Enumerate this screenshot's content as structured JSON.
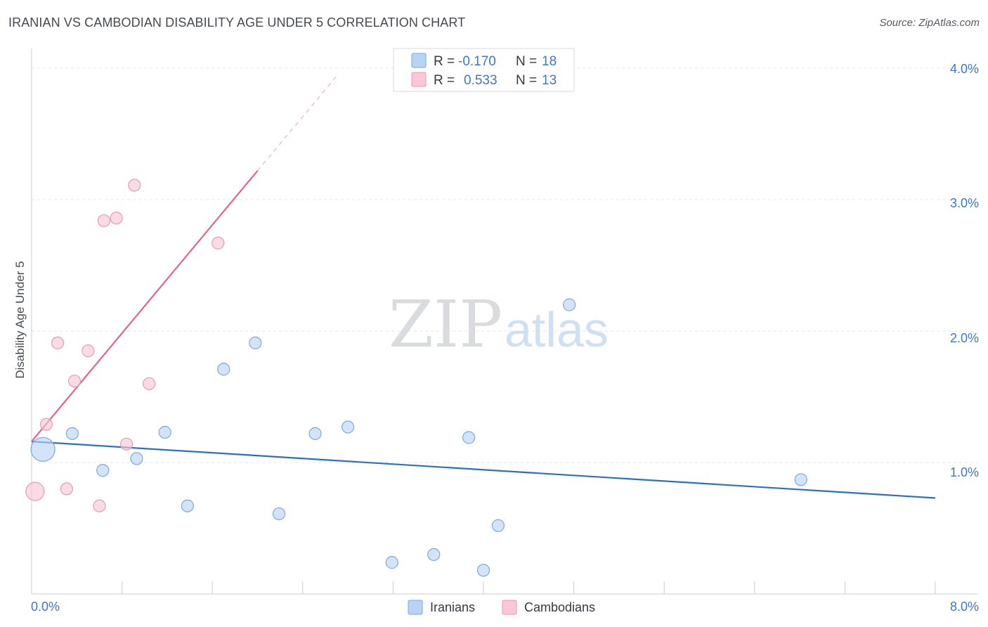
{
  "title": "IRANIAN VS CAMBODIAN DISABILITY AGE UNDER 5 CORRELATION CHART",
  "source": "Source: ZipAtlas.com",
  "watermark": {
    "zip": "ZIP",
    "atlas": "atlas"
  },
  "legend": {
    "rows": [
      {
        "r_label": "R =",
        "r_value": "-0.170",
        "n_label": "N =",
        "n_value": "18",
        "color": "#b8d4f4",
        "stroke": "#7aa9e0"
      },
      {
        "r_label": "R =",
        "r_value": "0.533",
        "n_label": "N =",
        "n_value": "13",
        "color": "#f9c7d5",
        "stroke": "#ee98b0"
      }
    ]
  },
  "bottom_legend": [
    {
      "label": "Iranians",
      "color": "#b8d4f4",
      "stroke": "#7aa9e0"
    },
    {
      "label": "Cambodians",
      "color": "#f9c7d5",
      "stroke": "#ee98b0"
    }
  ],
  "chart_data": {
    "type": "scatter",
    "title": "IRANIAN VS CAMBODIAN DISABILITY AGE UNDER 5 CORRELATION CHART",
    "xlabel": "",
    "ylabel": "Disability Age Under 5",
    "xlim": [
      0,
      8
    ],
    "ylim": [
      0,
      4.15
    ],
    "x_tick_labels": [
      "0.0%",
      "8.0%"
    ],
    "y_ticks": [
      1,
      2,
      3,
      4
    ],
    "y_tick_labels": [
      "1.0%",
      "2.0%",
      "3.0%",
      "4.0%"
    ],
    "grid": true,
    "series": [
      {
        "name": "Iranians",
        "color": "#b8d4f4",
        "stroke": "#7aa9e0",
        "line_color": "#2a6fcc",
        "points": [
          {
            "x": 0.1,
            "y": 1.1,
            "size": "large"
          },
          {
            "x": 0.36,
            "y": 1.22
          },
          {
            "x": 0.63,
            "y": 0.94
          },
          {
            "x": 0.93,
            "y": 1.03
          },
          {
            "x": 1.18,
            "y": 1.23
          },
          {
            "x": 1.38,
            "y": 0.67
          },
          {
            "x": 1.7,
            "y": 1.71
          },
          {
            "x": 1.98,
            "y": 1.91
          },
          {
            "x": 2.19,
            "y": 0.61
          },
          {
            "x": 2.51,
            "y": 1.22
          },
          {
            "x": 2.8,
            "y": 1.27
          },
          {
            "x": 3.19,
            "y": 0.24
          },
          {
            "x": 3.56,
            "y": 0.3
          },
          {
            "x": 3.87,
            "y": 1.19
          },
          {
            "x": 4.0,
            "y": 0.18
          },
          {
            "x": 4.13,
            "y": 0.52
          },
          {
            "x": 4.76,
            "y": 2.2
          },
          {
            "x": 6.81,
            "y": 0.87
          }
        ],
        "trend": {
          "x0": 0.0,
          "y0": 1.16,
          "x1": 8.0,
          "y1": 0.73
        }
      },
      {
        "name": "Cambodians",
        "color": "#f9c7d5",
        "stroke": "#ee98b0",
        "line_color": "#e4638d",
        "points": [
          {
            "x": 0.03,
            "y": 0.78,
            "size": "medium"
          },
          {
            "x": 0.13,
            "y": 1.29
          },
          {
            "x": 0.23,
            "y": 1.91
          },
          {
            "x": 0.31,
            "y": 0.8
          },
          {
            "x": 0.38,
            "y": 1.62
          },
          {
            "x": 0.5,
            "y": 1.85
          },
          {
            "x": 0.6,
            "y": 0.67
          },
          {
            "x": 0.64,
            "y": 2.84
          },
          {
            "x": 0.75,
            "y": 2.86
          },
          {
            "x": 0.84,
            "y": 1.14
          },
          {
            "x": 0.91,
            "y": 3.11
          },
          {
            "x": 1.04,
            "y": 1.6
          },
          {
            "x": 1.65,
            "y": 2.67
          }
        ],
        "trend": {
          "x0": 0.0,
          "y0": 1.16,
          "x1": 2.0,
          "y1": 3.22
        },
        "trend_dashed_to": {
          "x": 2.7,
          "y": 3.94
        }
      }
    ]
  }
}
